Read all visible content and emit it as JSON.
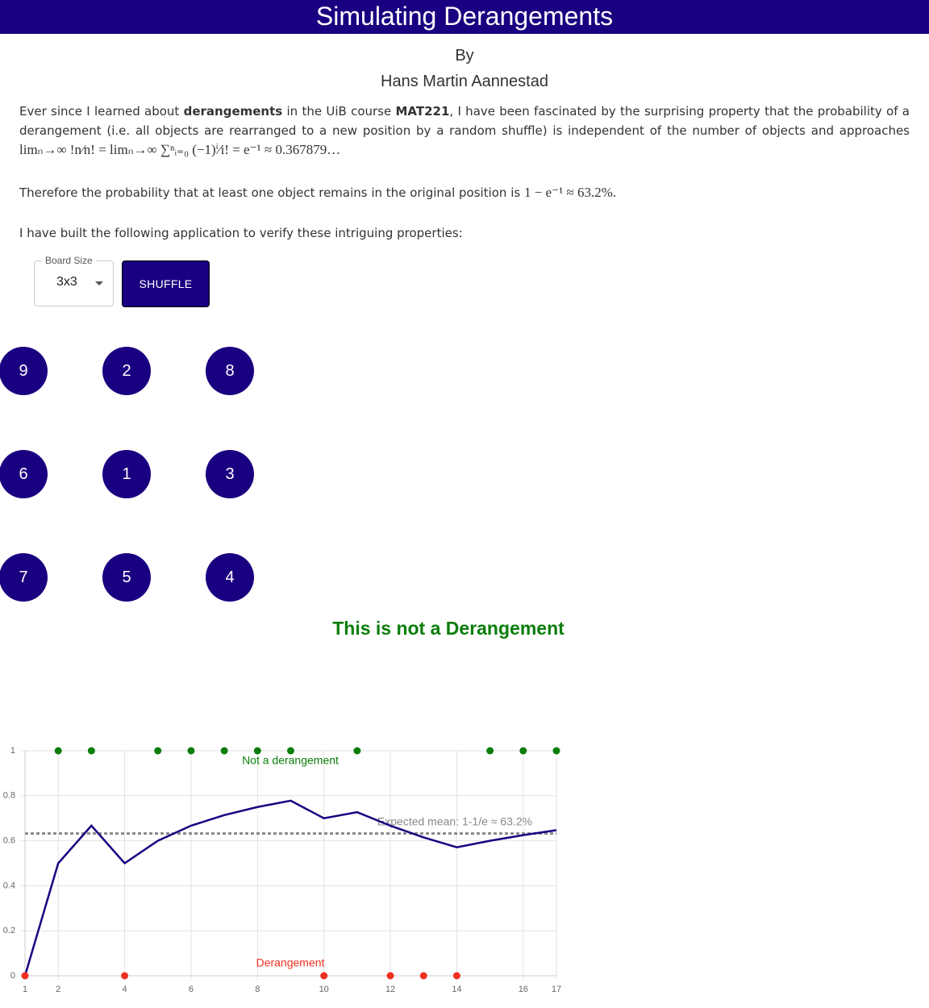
{
  "header": {
    "title": "Simulating Derangements",
    "by": "By",
    "author": "Hans Martin Aannestad"
  },
  "intro": {
    "p1": [
      "Ever since I learned about ",
      "derangements",
      " in the UiB course ",
      "MAT221",
      ", I have been fascinated by the surprising property that the probability of a derangement (i.e. all objects are rearranged to a new position by a random shuffle) is independent of the number of objects and approaches "
    ],
    "p1_math": "limₙ→∞ !n⁄n! = limₙ→∞ ∑ⁿᵢ₌₀ (−1)ⁱ⁄i! = e⁻¹ ≈ 0.367879…",
    "p2": "Therefore the probability that at least one object remains in the original position is ",
    "p2_math": "1 − e⁻¹ ≈ 63.2%.",
    "p3": "I have built the following application to verify these intriguing properties:"
  },
  "controls": {
    "board_size_label": "Board Size",
    "board_size": "3x3",
    "shuffle": "SHUFFLE"
  },
  "board": {
    "rows": [
      [
        9,
        2,
        8
      ],
      [
        6,
        1,
        3
      ],
      [
        7,
        5,
        4
      ]
    ]
  },
  "status": "This is not a Derangement",
  "chart_data": {
    "type": "line",
    "xlim": [
      1,
      17
    ],
    "ylim": [
      0,
      1
    ],
    "xticks": [
      1,
      2,
      4,
      6,
      8,
      10,
      12,
      14,
      16,
      17
    ],
    "yticks": [
      0,
      0.2,
      0.4,
      0.6,
      0.8,
      1
    ],
    "grid": true,
    "series": [
      {
        "type": "line",
        "color": "#1a0080",
        "x": [
          1,
          2,
          3,
          4,
          5,
          6,
          7,
          8,
          9,
          10,
          11,
          12,
          13,
          14,
          15,
          16,
          17
        ],
        "values": [
          0,
          0.5,
          0.667,
          0.5,
          0.6,
          0.667,
          0.714,
          0.75,
          0.778,
          0.7,
          0.727,
          0.667,
          0.615,
          0.571,
          0.6,
          0.625,
          0.647
        ]
      },
      {
        "type": "scatter",
        "color": "#0a7d0a",
        "x": [
          2,
          3,
          5,
          6,
          7,
          8,
          9,
          11,
          15,
          16,
          17
        ],
        "values": [
          1,
          1,
          1,
          1,
          1,
          1,
          1,
          1,
          1,
          1,
          1
        ]
      },
      {
        "type": "scatter",
        "color": "#f03020",
        "x": [
          1,
          4,
          10,
          12,
          13,
          14
        ],
        "values": [
          0,
          0,
          0,
          0,
          0,
          0
        ]
      }
    ],
    "reference_line": {
      "value": 0.632,
      "label": "Expected mean: 1-1/e ≈ 63.2%",
      "color": "#888888"
    },
    "annotations": [
      {
        "text": "Not a derangement",
        "color": "#0a7d0a"
      },
      {
        "text": "Derangement",
        "color": "#f03020"
      }
    ]
  }
}
